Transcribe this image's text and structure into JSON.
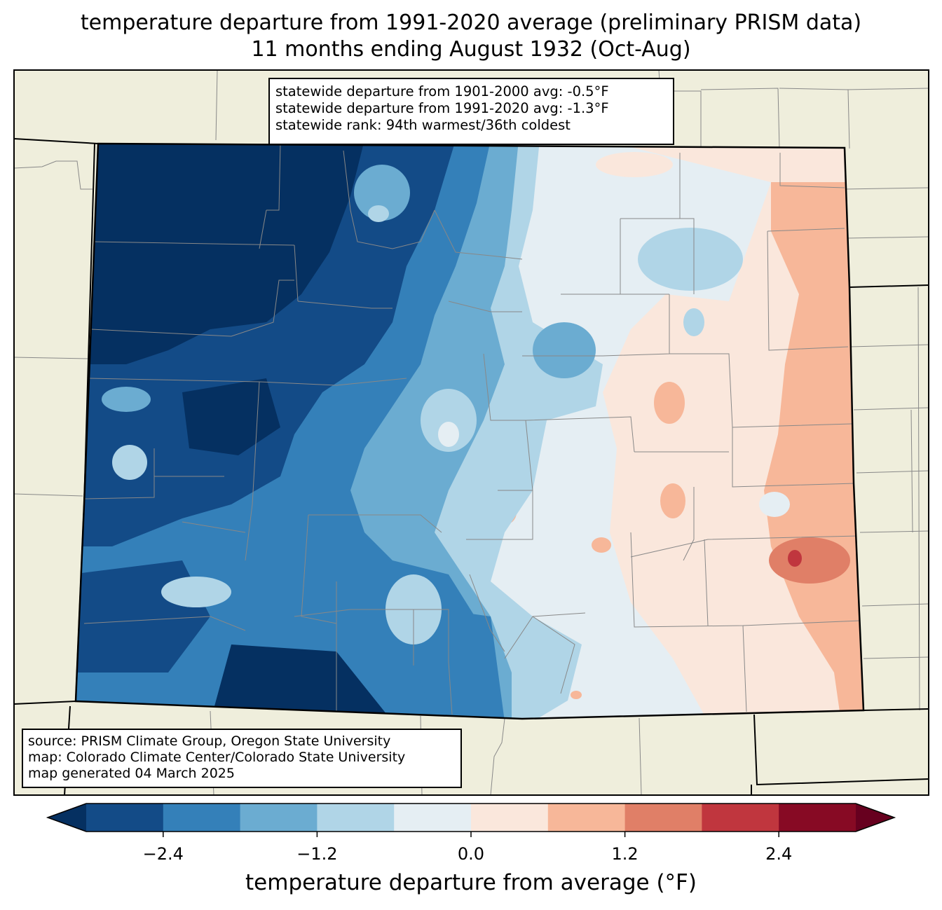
{
  "map": {
    "title_line1": "temperature departure from 1991-2020 average (preliminary PRISM data)",
    "title_line2": "11 months ending August 1932 (Oct-Aug)",
    "region": "Colorado",
    "land_color": "#efeedc"
  },
  "stats": {
    "line1": "statewide departure from 1901-2000 avg: -0.5°F",
    "line2": "statewide departure from 1991-2020 avg: -1.3°F",
    "line3": "statewide rank: 94th warmest/36th coldest"
  },
  "source": {
    "line1": "source: PRISM Climate Group, Oregon State University",
    "line2": "map: Colorado Climate Center/Colorado State University",
    "line3": "map generated 04 March 2025"
  },
  "colorbar": {
    "label": "temperature departure from average (°F)",
    "ticks": [
      "−2.4",
      "−1.2",
      "0.0",
      "1.2",
      "2.4"
    ],
    "tick_values": [
      -2.4,
      -1.2,
      0.0,
      1.2,
      2.4
    ],
    "range": [
      -3.0,
      3.0
    ],
    "step": 0.6,
    "extend": "both",
    "under_color": "#053061",
    "over_color": "#67001f",
    "colors": [
      "#134b87",
      "#3480b9",
      "#6bacd1",
      "#b0d5e7",
      "#e5eef3",
      "#fae7dc",
      "#f7b799",
      "#e07f67",
      "#c0363e",
      "#870a24"
    ]
  }
}
